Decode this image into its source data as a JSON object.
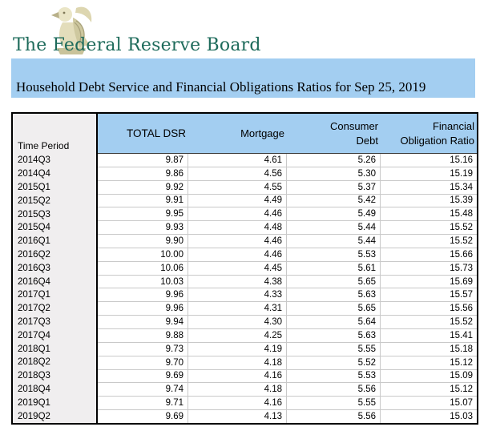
{
  "brand": {
    "name": "The Federal Reserve Board",
    "logo_icon": "federal-reserve-eagle"
  },
  "title_bar": {
    "title": "Household Debt Service and Financial Obligations Ratios for Sep 25, 2019"
  },
  "table": {
    "row_header": "Time Period",
    "columns": [
      "TOTAL DSR",
      "Mortgage",
      "Consumer Debt",
      "Financial Obligation Ratio"
    ],
    "rows": [
      {
        "period": "2014Q3",
        "values": [
          "9.87",
          "4.61",
          "5.26",
          "15.16"
        ]
      },
      {
        "period": "2014Q4",
        "values": [
          "9.86",
          "4.56",
          "5.30",
          "15.19"
        ]
      },
      {
        "period": "2015Q1",
        "values": [
          "9.92",
          "4.55",
          "5.37",
          "15.34"
        ]
      },
      {
        "period": "2015Q2",
        "values": [
          "9.91",
          "4.49",
          "5.42",
          "15.39"
        ]
      },
      {
        "period": "2015Q3",
        "values": [
          "9.95",
          "4.46",
          "5.49",
          "15.48"
        ]
      },
      {
        "period": "2015Q4",
        "values": [
          "9.93",
          "4.48",
          "5.44",
          "15.52"
        ]
      },
      {
        "period": "2016Q1",
        "values": [
          "9.90",
          "4.46",
          "5.44",
          "15.52"
        ]
      },
      {
        "period": "2016Q2",
        "values": [
          "10.00",
          "4.46",
          "5.53",
          "15.66"
        ]
      },
      {
        "period": "2016Q3",
        "values": [
          "10.06",
          "4.45",
          "5.61",
          "15.73"
        ]
      },
      {
        "period": "2016Q4",
        "values": [
          "10.03",
          "4.38",
          "5.65",
          "15.69"
        ]
      },
      {
        "period": "2017Q1",
        "values": [
          "9.96",
          "4.33",
          "5.63",
          "15.57"
        ]
      },
      {
        "period": "2017Q2",
        "values": [
          "9.96",
          "4.31",
          "5.65",
          "15.56"
        ]
      },
      {
        "period": "2017Q3",
        "values": [
          "9.94",
          "4.30",
          "5.64",
          "15.52"
        ]
      },
      {
        "period": "2017Q4",
        "values": [
          "9.88",
          "4.25",
          "5.63",
          "15.41"
        ]
      },
      {
        "period": "2018Q1",
        "values": [
          "9.73",
          "4.19",
          "5.55",
          "15.18"
        ]
      },
      {
        "period": "2018Q2",
        "values": [
          "9.70",
          "4.18",
          "5.52",
          "15.12"
        ]
      },
      {
        "period": "2018Q3",
        "values": [
          "9.69",
          "4.16",
          "5.53",
          "15.09"
        ]
      },
      {
        "period": "2018Q4",
        "values": [
          "9.74",
          "4.18",
          "5.56",
          "15.12"
        ]
      },
      {
        "period": "2019Q1",
        "values": [
          "9.71",
          "4.16",
          "5.55",
          "15.07"
        ]
      },
      {
        "period": "2019Q2",
        "values": [
          "9.69",
          "4.13",
          "5.56",
          "15.03"
        ]
      }
    ]
  },
  "colors": {
    "accent_blue": "#A3CEF1",
    "header_gray": "#F0EEEF",
    "brand_teal": "#1E6B5B",
    "gridline": "#C9C9C9"
  }
}
